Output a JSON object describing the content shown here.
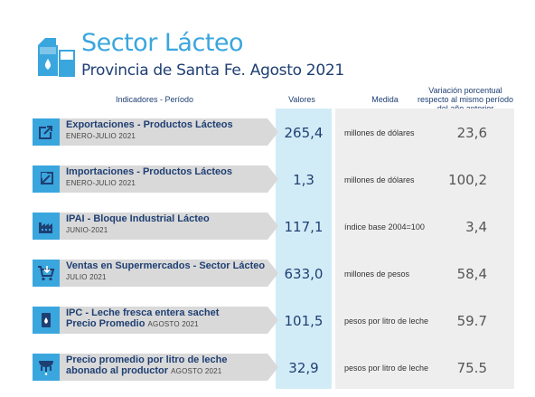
{
  "header": {
    "title": "Sector Lácteo",
    "subtitle": "Provincia de Santa Fe. Agosto 2021"
  },
  "columns": {
    "indicadores": "Indicadores - Período",
    "valores": "Valores",
    "medida": "Medida",
    "variacion_lines": [
      "Variación porcentual",
      "respecto al mismo período",
      "del año anterior"
    ]
  },
  "colors": {
    "accent": "#3aa6de",
    "navy": "#1f3f73",
    "label_bg": "#d9d9d9",
    "values_band": "#d2ecf7",
    "variation_band": "#eeeeee"
  },
  "rows": [
    {
      "icon": "export-arrow-icon",
      "name": "Exportaciones - Productos Lácteos",
      "name2": "",
      "period": "ENERO-JULIO 2021",
      "value": "265,4",
      "medida": "millones de dólares",
      "variacion": "23,6"
    },
    {
      "icon": "import-arrow-icon",
      "name": "Importaciones - Productos Lácteos",
      "name2": "",
      "period": "ENERO-JULIO 2021",
      "value": "1,3",
      "medida": "millones de dólares",
      "variacion": "100,2"
    },
    {
      "icon": "factory-icon",
      "name": "IPAI - Bloque Industrial Lácteo",
      "name2": "",
      "period": "JUNIO-2021",
      "value": "117,1",
      "medida": "índice base 2004=100",
      "variacion": "3,4"
    },
    {
      "icon": "shopping-cart-icon",
      "name": "Ventas en Supermercados - Sector Lácteo",
      "name2": "",
      "period": "JULIO 2021",
      "value": "633,0",
      "medida": "millones de pesos",
      "variacion": "58,4"
    },
    {
      "icon": "milk-sachet-icon",
      "name": "IPC - Leche fresca entera sachet",
      "name2": "Precio Promedio",
      "period": "AGOSTO 2021",
      "value": "101,5",
      "medida": "pesos por litro de leche",
      "variacion": "59.7"
    },
    {
      "icon": "cow-udder-icon",
      "name": "Precio promedio por litro de leche",
      "name2": "abonado al productor",
      "period": "AGOSTO 2021",
      "value": "32,9",
      "medida": "pesos por litro de leche",
      "variacion": "75.5"
    }
  ]
}
